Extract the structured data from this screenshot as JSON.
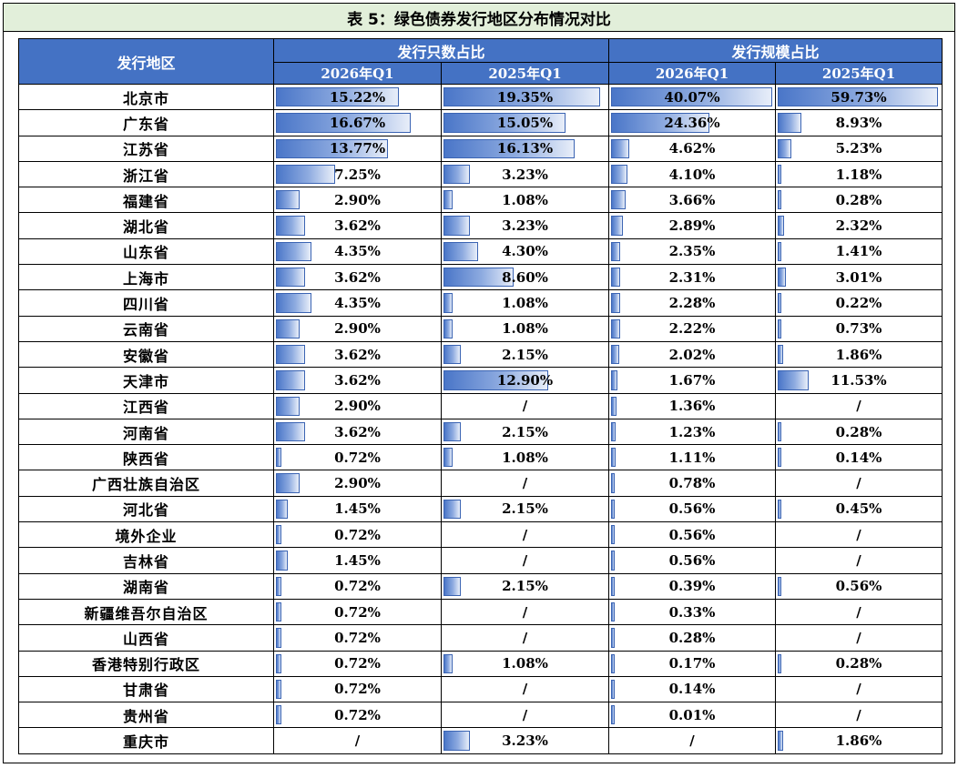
{
  "title": "表 5：绿色债券发行地区分布情况对比",
  "headers": {
    "region": "发行地区",
    "group1": "发行只数占比",
    "group2": "发行规模占比",
    "sub": [
      "2026年Q1",
      "2025年Q1",
      "2026年Q1",
      "2025年Q1"
    ]
  },
  "rows": [
    {
      "region": "北京市",
      "v": [
        "15.22%",
        "19.35%",
        "40.07%",
        "59.73%"
      ],
      "n": [
        15.22,
        19.35,
        40.07,
        59.73
      ]
    },
    {
      "region": "广东省",
      "v": [
        "16.67%",
        "15.05%",
        "24.36%",
        "8.93%"
      ],
      "n": [
        16.67,
        15.05,
        24.36,
        8.93
      ]
    },
    {
      "region": "江苏省",
      "v": [
        "13.77%",
        "16.13%",
        "4.62%",
        "5.23%"
      ],
      "n": [
        13.77,
        16.13,
        4.62,
        5.23
      ]
    },
    {
      "region": "浙江省",
      "v": [
        "7.25%",
        "3.23%",
        "4.10%",
        "1.18%"
      ],
      "n": [
        7.25,
        3.23,
        4.1,
        1.18
      ]
    },
    {
      "region": "福建省",
      "v": [
        "2.90%",
        "1.08%",
        "3.66%",
        "0.28%"
      ],
      "n": [
        2.9,
        1.08,
        3.66,
        0.28
      ]
    },
    {
      "region": "湖北省",
      "v": [
        "3.62%",
        "3.23%",
        "2.89%",
        "2.32%"
      ],
      "n": [
        3.62,
        3.23,
        2.89,
        2.32
      ]
    },
    {
      "region": "山东省",
      "v": [
        "4.35%",
        "4.30%",
        "2.35%",
        "1.41%"
      ],
      "n": [
        4.35,
        4.3,
        2.35,
        1.41
      ]
    },
    {
      "region": "上海市",
      "v": [
        "3.62%",
        "8.60%",
        "2.31%",
        "3.01%"
      ],
      "n": [
        3.62,
        8.6,
        2.31,
        3.01
      ]
    },
    {
      "region": "四川省",
      "v": [
        "4.35%",
        "1.08%",
        "2.28%",
        "0.22%"
      ],
      "n": [
        4.35,
        1.08,
        2.28,
        0.22
      ]
    },
    {
      "region": "云南省",
      "v": [
        "2.90%",
        "1.08%",
        "2.22%",
        "0.73%"
      ],
      "n": [
        2.9,
        1.08,
        2.22,
        0.73
      ]
    },
    {
      "region": "安徽省",
      "v": [
        "3.62%",
        "2.15%",
        "2.02%",
        "1.86%"
      ],
      "n": [
        3.62,
        2.15,
        2.02,
        1.86
      ]
    },
    {
      "region": "天津市",
      "v": [
        "3.62%",
        "12.90%",
        "1.67%",
        "11.53%"
      ],
      "n": [
        3.62,
        12.9,
        1.67,
        11.53
      ]
    },
    {
      "region": "江西省",
      "v": [
        "2.90%",
        "/",
        "1.36%",
        "/"
      ],
      "n": [
        2.9,
        null,
        1.36,
        null
      ]
    },
    {
      "region": "河南省",
      "v": [
        "3.62%",
        "2.15%",
        "1.23%",
        "0.28%"
      ],
      "n": [
        3.62,
        2.15,
        1.23,
        0.28
      ]
    },
    {
      "region": "陕西省",
      "v": [
        "0.72%",
        "1.08%",
        "1.11%",
        "0.14%"
      ],
      "n": [
        0.72,
        1.08,
        1.11,
        0.14
      ]
    },
    {
      "region": "广西壮族自治区",
      "v": [
        "2.90%",
        "/",
        "0.78%",
        "/"
      ],
      "n": [
        2.9,
        null,
        0.78,
        null
      ]
    },
    {
      "region": "河北省",
      "v": [
        "1.45%",
        "2.15%",
        "0.56%",
        "0.45%"
      ],
      "n": [
        1.45,
        2.15,
        0.56,
        0.45
      ]
    },
    {
      "region": "境外企业",
      "v": [
        "0.72%",
        "/",
        "0.56%",
        "/"
      ],
      "n": [
        0.72,
        null,
        0.56,
        null
      ]
    },
    {
      "region": "吉林省",
      "v": [
        "1.45%",
        "/",
        "0.56%",
        "/"
      ],
      "n": [
        1.45,
        null,
        0.56,
        null
      ]
    },
    {
      "region": "湖南省",
      "v": [
        "0.72%",
        "2.15%",
        "0.39%",
        "0.56%"
      ],
      "n": [
        0.72,
        2.15,
        0.39,
        0.56
      ]
    },
    {
      "region": "新疆维吾尔自治区",
      "v": [
        "0.72%",
        "/",
        "0.33%",
        "/"
      ],
      "n": [
        0.72,
        null,
        0.33,
        null
      ]
    },
    {
      "region": "山西省",
      "v": [
        "0.72%",
        "/",
        "0.28%",
        "/"
      ],
      "n": [
        0.72,
        null,
        0.28,
        null
      ]
    },
    {
      "region": "香港特别行政区",
      "v": [
        "0.72%",
        "1.08%",
        "0.17%",
        "0.28%"
      ],
      "n": [
        0.72,
        1.08,
        0.17,
        0.28
      ]
    },
    {
      "region": "甘肃省",
      "v": [
        "0.72%",
        "/",
        "0.14%",
        "/"
      ],
      "n": [
        0.72,
        null,
        0.14,
        null
      ]
    },
    {
      "region": "贵州省",
      "v": [
        "0.72%",
        "/",
        "0.01%",
        "/"
      ],
      "n": [
        0.72,
        null,
        0.01,
        null
      ]
    },
    {
      "region": "重庆市",
      "v": [
        "/",
        "3.23%",
        "/",
        "1.86%"
      ],
      "n": [
        null,
        3.23,
        null,
        1.86
      ]
    }
  ]
}
